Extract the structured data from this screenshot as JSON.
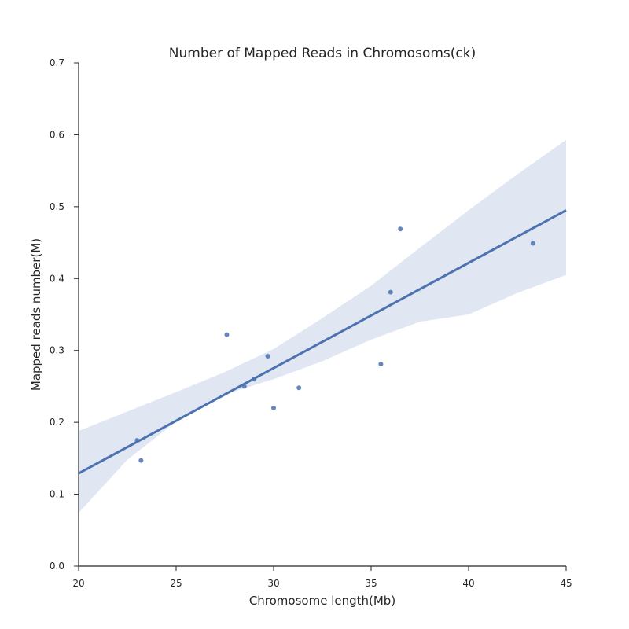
{
  "chart_data": {
    "type": "scatter",
    "title": "Number of Mapped Reads in Chromosoms(ck)",
    "xlabel": "Chromosome length(Mb)",
    "ylabel": "Mapped reads number(M)",
    "xlim": [
      20,
      45
    ],
    "ylim": [
      0.0,
      0.7
    ],
    "xticks": [
      20,
      25,
      30,
      35,
      40,
      45
    ],
    "xtick_labels": [
      "20",
      "25",
      "30",
      "35",
      "40",
      "45"
    ],
    "yticks": [
      0.0,
      0.1,
      0.2,
      0.3,
      0.4,
      0.5,
      0.6,
      0.7
    ],
    "ytick_labels": [
      "0.0",
      "0.1",
      "0.2",
      "0.3",
      "0.4",
      "0.5",
      "0.6",
      "0.7"
    ],
    "grid": false,
    "points": [
      {
        "x": 23.0,
        "y": 0.175
      },
      {
        "x": 23.2,
        "y": 0.147
      },
      {
        "x": 27.6,
        "y": 0.322
      },
      {
        "x": 28.5,
        "y": 0.25
      },
      {
        "x": 29.0,
        "y": 0.26
      },
      {
        "x": 29.7,
        "y": 0.292
      },
      {
        "x": 30.0,
        "y": 0.22
      },
      {
        "x": 31.3,
        "y": 0.248
      },
      {
        "x": 35.5,
        "y": 0.281
      },
      {
        "x": 36.0,
        "y": 0.381
      },
      {
        "x": 36.5,
        "y": 0.469
      },
      {
        "x": 43.3,
        "y": 0.449
      }
    ],
    "regression": {
      "x": [
        20,
        45
      ],
      "y": [
        0.129,
        0.495
      ]
    },
    "confidence_band": {
      "x": [
        20,
        22.5,
        25,
        27.5,
        30,
        32.5,
        35,
        37.5,
        40,
        42.5,
        45
      ],
      "upper": [
        0.188,
        0.215,
        0.242,
        0.27,
        0.302,
        0.345,
        0.39,
        0.443,
        0.495,
        0.545,
        0.593
      ],
      "lower": [
        0.074,
        0.148,
        0.201,
        0.239,
        0.26,
        0.285,
        0.315,
        0.34,
        0.35,
        0.38,
        0.405
      ]
    },
    "colors": {
      "points": "#4c72b0",
      "line": "#4c72b0",
      "band": "#dde4f2",
      "axes": "#262626",
      "text": "#262626"
    }
  }
}
